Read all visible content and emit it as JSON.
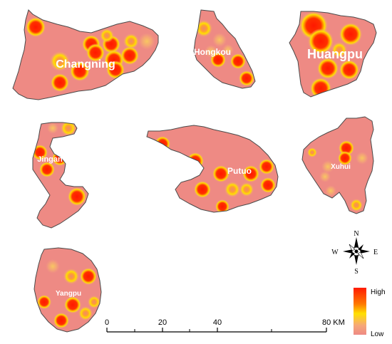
{
  "colors": {
    "district_fill": "#EE8A84",
    "district_border": "#4a4a4a",
    "heat_high": "#FF2000",
    "heat_mid": "#FFA000",
    "heat_low_ring": "#FFE800",
    "background": "#FFFFFF"
  },
  "districts": [
    {
      "id": "changning",
      "label": "Changning",
      "hotspot_count": 13
    },
    {
      "id": "hongkou",
      "label": "Hongkou",
      "hotspot_count": 7
    },
    {
      "id": "huangpu",
      "label": "Huangpu",
      "hotspot_count": 7
    },
    {
      "id": "jingan",
      "label": "Jingan",
      "hotspot_count": 6
    },
    {
      "id": "putuo",
      "label": "Putuo",
      "hotspot_count": 10
    },
    {
      "id": "xuhui",
      "label": "Xuhui",
      "hotspot_count": 8
    },
    {
      "id": "yangpu",
      "label": "Yangpu",
      "hotspot_count": 8
    }
  ],
  "compass": {
    "north": "N",
    "south": "S",
    "east": "E",
    "west": "W"
  },
  "scale_bar": {
    "tick_0": "0",
    "tick_20": "20",
    "tick_40": "40",
    "tick_80": "80 KM"
  },
  "legend": {
    "high": "High",
    "low": "Low"
  }
}
